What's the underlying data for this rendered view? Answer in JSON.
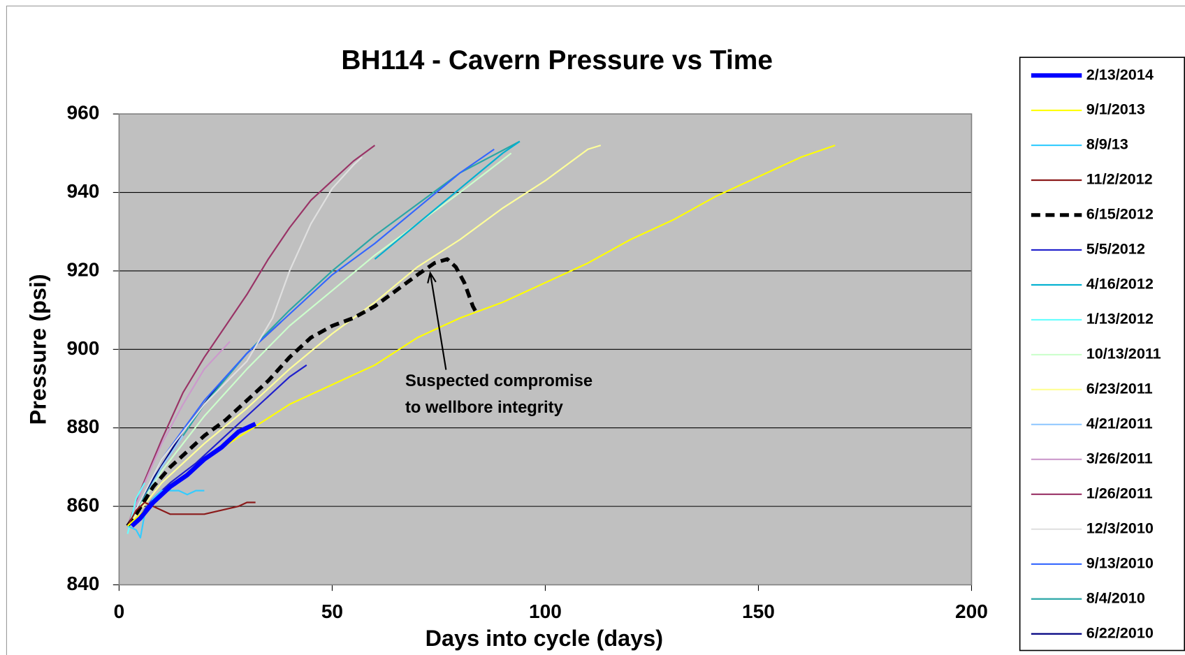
{
  "chart_data": {
    "type": "line",
    "title": "BH114 - Cavern Pressure vs Time",
    "x_label": "Days into cycle (days)",
    "y_label": "Pressure (psi)",
    "xlim": [
      0,
      200
    ],
    "xticks": [
      0,
      50,
      100,
      150,
      200
    ],
    "ylim": [
      840,
      960
    ],
    "yticks": [
      840,
      860,
      880,
      900,
      920,
      940,
      960
    ],
    "grid": true,
    "background": "#c0c0c0",
    "legend": "right",
    "annotation": {
      "lines": [
        "Suspected compromise",
        "to wellbore integrity"
      ],
      "x": 73,
      "y": 921
    },
    "series": [
      {
        "name": "2/13/2014",
        "color": "#0000ff",
        "line_width": 6,
        "dashed": false,
        "x": [
          3,
          5,
          8,
          12,
          16,
          20,
          24,
          28,
          30,
          32
        ],
        "values": [
          855,
          857,
          861,
          865,
          868,
          872,
          875,
          879,
          880,
          881
        ]
      },
      {
        "name": "9/1/2013",
        "color": "#ffff00",
        "line_width": 2,
        "dashed": false,
        "x": [
          2,
          10,
          20,
          30,
          40,
          50,
          60,
          70,
          80,
          90,
          100,
          110,
          120,
          130,
          140,
          150,
          160,
          168
        ],
        "values": [
          855,
          863,
          872,
          879,
          886,
          891,
          896,
          903,
          908,
          912,
          917,
          922,
          928,
          933,
          939,
          944,
          949,
          952
        ]
      },
      {
        "name": "8/9/13",
        "color": "#33ccff",
        "line_width": 2,
        "dashed": false,
        "x": [
          2,
          4,
          5,
          6,
          8,
          10,
          14,
          16,
          18,
          20
        ],
        "values": [
          855,
          854,
          852,
          858,
          862,
          864,
          864,
          863,
          864,
          864
        ]
      },
      {
        "name": "11/2/2012",
        "color": "#8b1a1a",
        "line_width": 2,
        "dashed": false,
        "x": [
          2,
          4,
          6,
          8,
          12,
          16,
          20,
          24,
          28,
          30,
          32
        ],
        "values": [
          855,
          859,
          861,
          860,
          858,
          858,
          858,
          859,
          860,
          861,
          861
        ]
      },
      {
        "name": "6/15/2012",
        "color": "#000000",
        "line_width": 5,
        "dashed": true,
        "x": [
          2,
          4,
          8,
          12,
          16,
          20,
          25,
          30,
          35,
          40,
          45,
          50,
          55,
          60,
          65,
          70,
          74,
          77,
          79,
          81,
          83,
          84
        ],
        "values": [
          855,
          858,
          865,
          870,
          874,
          878,
          882,
          887,
          892,
          898,
          903,
          906,
          908,
          911,
          915,
          919,
          922,
          923,
          921,
          917,
          911,
          909
        ]
      },
      {
        "name": "5/5/2012",
        "color": "#1f1fcc",
        "line_width": 2,
        "dashed": false,
        "x": [
          3,
          8,
          12,
          18,
          24,
          30,
          36,
          40,
          44
        ],
        "values": [
          855,
          862,
          866,
          871,
          877,
          883,
          889,
          893,
          896
        ]
      },
      {
        "name": "4/16/2012",
        "color": "#00b0d0",
        "line_width": 2,
        "dashed": false,
        "x": [
          60,
          70,
          80,
          90,
          94
        ],
        "values": [
          923,
          932,
          941,
          950,
          953
        ]
      },
      {
        "name": "1/13/2012",
        "color": "#66ffff",
        "line_width": 2,
        "dashed": false,
        "x": [
          2,
          4,
          6
        ],
        "values": [
          853,
          862,
          866
        ]
      },
      {
        "name": "10/13/2011",
        "color": "#ccffcc",
        "line_width": 2,
        "dashed": false,
        "x": [
          2,
          10,
          20,
          30,
          40,
          50,
          60,
          70,
          80,
          92
        ],
        "values": [
          855,
          869,
          883,
          895,
          906,
          915,
          924,
          932,
          940,
          950
        ]
      },
      {
        "name": "6/23/2011",
        "color": "#ffff99",
        "line_width": 2,
        "dashed": false,
        "x": [
          2,
          10,
          20,
          30,
          40,
          50,
          60,
          70,
          80,
          90,
          100,
          110,
          113
        ],
        "values": [
          855,
          866,
          876,
          885,
          895,
          904,
          912,
          921,
          928,
          936,
          943,
          951,
          952
        ]
      },
      {
        "name": "4/21/2011",
        "color": "#99ccff",
        "line_width": 2,
        "dashed": false,
        "x": [
          2,
          6,
          10,
          15
        ],
        "values": [
          855,
          862,
          870,
          878
        ]
      },
      {
        "name": "3/26/2011",
        "color": "#cc99cc",
        "line_width": 2,
        "dashed": false,
        "x": [
          2,
          6,
          10,
          15,
          20,
          26
        ],
        "values": [
          855,
          866,
          876,
          886,
          895,
          902
        ]
      },
      {
        "name": "1/26/2011",
        "color": "#993366",
        "line_width": 2,
        "dashed": false,
        "x": [
          2,
          5,
          10,
          15,
          20,
          25,
          30,
          35,
          40,
          45,
          50,
          55,
          60
        ],
        "values": [
          855,
          864,
          877,
          889,
          898,
          906,
          914,
          923,
          931,
          938,
          943,
          948,
          952
        ]
      },
      {
        "name": "12/3/2010",
        "color": "#e0e0e0",
        "line_width": 2,
        "dashed": false,
        "x": [
          2,
          10,
          20,
          30,
          36,
          40,
          45,
          50,
          55,
          57
        ],
        "values": [
          855,
          872,
          886,
          897,
          908,
          920,
          932,
          941,
          947,
          949
        ]
      },
      {
        "name": "9/13/2010",
        "color": "#3366ff",
        "line_width": 2,
        "dashed": false,
        "x": [
          2,
          10,
          20,
          30,
          40,
          50,
          60,
          70,
          80,
          88
        ],
        "values": [
          855,
          872,
          887,
          899,
          909,
          919,
          927,
          936,
          945,
          951
        ]
      },
      {
        "name": "8/4/2010",
        "color": "#2aa6a6",
        "line_width": 2,
        "dashed": false,
        "x": [
          2,
          10,
          20,
          30,
          40,
          50,
          60,
          70,
          80,
          94
        ],
        "values": [
          855,
          870,
          886,
          899,
          910,
          920,
          929,
          937,
          945,
          953
        ]
      },
      {
        "name": "6/22/2010",
        "color": "#000080",
        "line_width": 2,
        "dashed": false,
        "x": [
          2,
          8,
          15,
          22,
          30,
          38
        ],
        "values": [
          855,
          867,
          879,
          889,
          899,
          907
        ]
      }
    ]
  }
}
